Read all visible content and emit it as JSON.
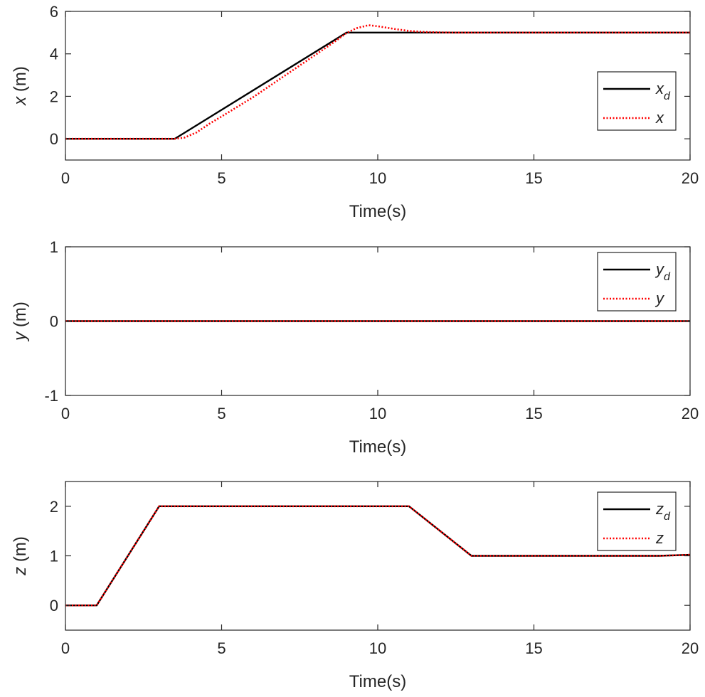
{
  "chart_data": [
    {
      "type": "line",
      "xlabel": "Time(s)",
      "ylabel_var": "x",
      "ylabel_unit": " (m)",
      "xlim": [
        0,
        20
      ],
      "ylim": [
        -1,
        6
      ],
      "xticks": [
        0,
        5,
        10,
        15,
        20
      ],
      "xtick_labels": [
        "0",
        "5",
        "10",
        "15",
        "20"
      ],
      "yticks": [
        0,
        2,
        4,
        6
      ],
      "ytick_labels": [
        "0",
        "2",
        "4",
        "6"
      ],
      "legend_position": "right",
      "series": [
        {
          "name_main": "x",
          "name_sub": "d",
          "color": "#000000",
          "style": "solid",
          "x": [
            0,
            3.5,
            9.0,
            20
          ],
          "y": [
            0,
            0,
            5.0,
            5.0
          ]
        },
        {
          "name_main": "x",
          "name_sub": "",
          "color": "#ff0000",
          "style": "dotted",
          "x": [
            0,
            3.5,
            3.8,
            4.2,
            4.6,
            5.0,
            6.0,
            7.0,
            8.0,
            8.6,
            9.0,
            9.3,
            9.7,
            10.0,
            10.5,
            11.0,
            11.5,
            12.0,
            12.5,
            13.0,
            20
          ],
          "y": [
            0,
            0,
            0.05,
            0.3,
            0.7,
            1.05,
            1.95,
            2.95,
            3.95,
            4.55,
            4.98,
            5.2,
            5.35,
            5.3,
            5.18,
            5.08,
            5.03,
            5.01,
            5.0,
            5.0,
            5.0
          ]
        }
      ]
    },
    {
      "type": "line",
      "xlabel": "Time(s)",
      "ylabel_var": "y",
      "ylabel_unit": " (m)",
      "xlim": [
        0,
        20
      ],
      "ylim": [
        -1,
        1
      ],
      "xticks": [
        0,
        5,
        10,
        15,
        20
      ],
      "xtick_labels": [
        "0",
        "5",
        "10",
        "15",
        "20"
      ],
      "yticks": [
        -1,
        0,
        1
      ],
      "ytick_labels": [
        "-1",
        "0",
        "1"
      ],
      "legend_position": "top-right",
      "series": [
        {
          "name_main": "y",
          "name_sub": "d",
          "color": "#000000",
          "style": "solid",
          "x": [
            0,
            20
          ],
          "y": [
            0,
            0
          ]
        },
        {
          "name_main": "y",
          "name_sub": "",
          "color": "#ff0000",
          "style": "dotted",
          "x": [
            0,
            20
          ],
          "y": [
            0,
            0
          ]
        }
      ]
    },
    {
      "type": "line",
      "xlabel": "Time(s)",
      "ylabel_var": "z",
      "ylabel_unit": " (m)",
      "xlim": [
        0,
        20
      ],
      "ylim": [
        -0.5,
        2.5
      ],
      "xticks": [
        0,
        5,
        10,
        15,
        20
      ],
      "xtick_labels": [
        "0",
        "5",
        "10",
        "15",
        "20"
      ],
      "yticks": [
        0,
        1,
        2
      ],
      "ytick_labels": [
        "0",
        "1",
        "2"
      ],
      "legend_position": "top-right",
      "series": [
        {
          "name_main": "z",
          "name_sub": "d",
          "color": "#000000",
          "style": "solid",
          "x": [
            0,
            1,
            3,
            11,
            13,
            19,
            20
          ],
          "y": [
            0,
            0,
            2,
            2,
            1,
            1,
            1.02
          ]
        },
        {
          "name_main": "z",
          "name_sub": "",
          "color": "#ff0000",
          "style": "dotted",
          "x": [
            0,
            1,
            3,
            11,
            13,
            19,
            20
          ],
          "y": [
            0,
            0,
            2,
            2,
            1,
            1,
            1.02
          ]
        }
      ]
    }
  ]
}
